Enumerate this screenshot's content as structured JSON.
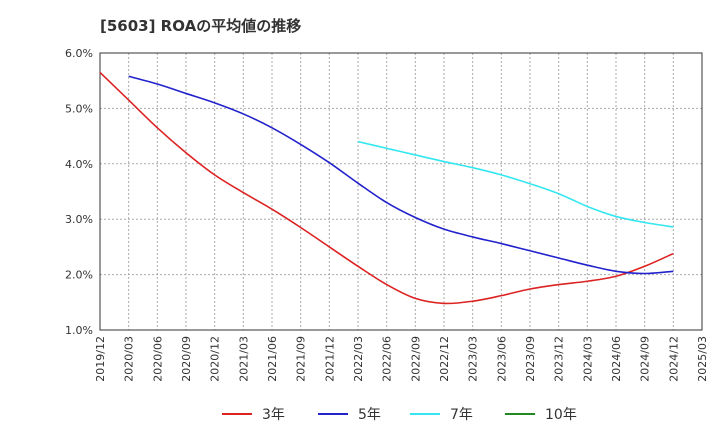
{
  "chart_data": {
    "type": "line",
    "title": "[5603]  ROAの平均値の推移",
    "xlabel": "",
    "ylabel": "",
    "categories": [
      "2019/12",
      "2020/03",
      "2020/06",
      "2020/09",
      "2020/12",
      "2021/03",
      "2021/06",
      "2021/09",
      "2021/12",
      "2022/03",
      "2022/06",
      "2022/09",
      "2022/12",
      "2023/03",
      "2023/06",
      "2023/09",
      "2023/12",
      "2024/03",
      "2024/06",
      "2024/09",
      "2024/12",
      "2025/03"
    ],
    "ylim": [
      1.0,
      6.0
    ],
    "yticks": [
      "1.0%",
      "2.0%",
      "3.0%",
      "4.0%",
      "5.0%",
      "6.0%"
    ],
    "grid": true,
    "legend_position": "bottom",
    "series": [
      {
        "name": "3年",
        "color": "#dd2222",
        "values": [
          5.65,
          5.15,
          4.65,
          4.2,
          3.8,
          3.48,
          3.18,
          2.85,
          2.5,
          2.15,
          1.82,
          1.57,
          1.48,
          1.52,
          1.62,
          1.74,
          1.82,
          1.88,
          1.97,
          2.15,
          2.38,
          null
        ]
      },
      {
        "name": "5年",
        "color": "#2222cc",
        "values": [
          null,
          5.58,
          5.44,
          5.27,
          5.1,
          4.9,
          4.65,
          4.35,
          4.02,
          3.65,
          3.3,
          3.03,
          2.82,
          2.68,
          2.56,
          2.43,
          2.3,
          2.17,
          2.06,
          2.02,
          2.06,
          null
        ]
      },
      {
        "name": "7年",
        "color": "#33e6f0",
        "values": [
          null,
          null,
          null,
          null,
          null,
          null,
          null,
          null,
          null,
          4.4,
          4.28,
          4.16,
          4.04,
          3.93,
          3.8,
          3.64,
          3.46,
          3.23,
          3.05,
          2.94,
          2.86,
          null
        ]
      },
      {
        "name": "10年",
        "color": "#228822",
        "values": [
          null,
          null,
          null,
          null,
          null,
          null,
          null,
          null,
          null,
          null,
          null,
          null,
          null,
          null,
          null,
          null,
          null,
          null,
          null,
          null,
          null,
          null
        ]
      }
    ]
  }
}
